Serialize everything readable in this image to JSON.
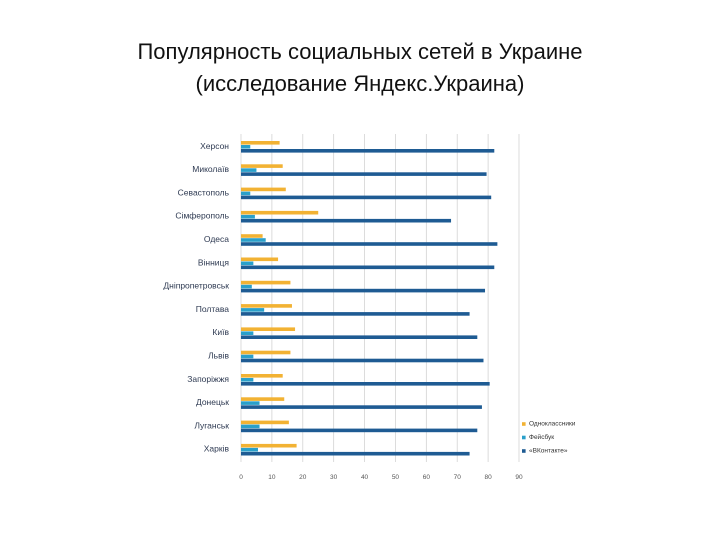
{
  "chart_data": {
    "type": "bar",
    "orientation": "horizontal",
    "title": [
      "Популярность социальных сетей в Украине",
      "(исследование Яндекс.Украина)"
    ],
    "categories": [
      "Херсон",
      "Миколаїв",
      "Севастополь",
      "Сімферополь",
      "Одеса",
      "Вінниця",
      "Дніпропетровськ",
      "Полтава",
      "Київ",
      "Львів",
      "Запоріжжя",
      "Донецьк",
      "Луганськ",
      "Харків"
    ],
    "series": [
      {
        "name": "Одноклассники",
        "color": "#f2b233",
        "values": [
          12.5,
          13.5,
          14.5,
          25,
          7,
          12,
          16,
          16.5,
          17.5,
          16,
          13.5,
          14,
          15.5,
          18
        ]
      },
      {
        "name": "Фейсбук",
        "color": "#2aa0ca",
        "values": [
          3,
          5,
          3,
          4.5,
          8,
          4,
          3.5,
          7.5,
          4,
          4,
          4,
          6,
          6,
          5.5
        ]
      },
      {
        "name": "«ВКонтакте»",
        "color": "#1e5b93",
        "values": [
          82,
          79.5,
          81,
          68,
          83,
          82,
          79,
          74,
          76.5,
          78.5,
          80.5,
          78,
          76.5,
          74
        ]
      }
    ],
    "x_ticks": [
      0,
      10,
      20,
      30,
      40,
      50,
      60,
      70,
      80,
      90
    ],
    "xlim": [
      0,
      90
    ],
    "grid": "vertical",
    "legend_position": "bottom-right"
  }
}
